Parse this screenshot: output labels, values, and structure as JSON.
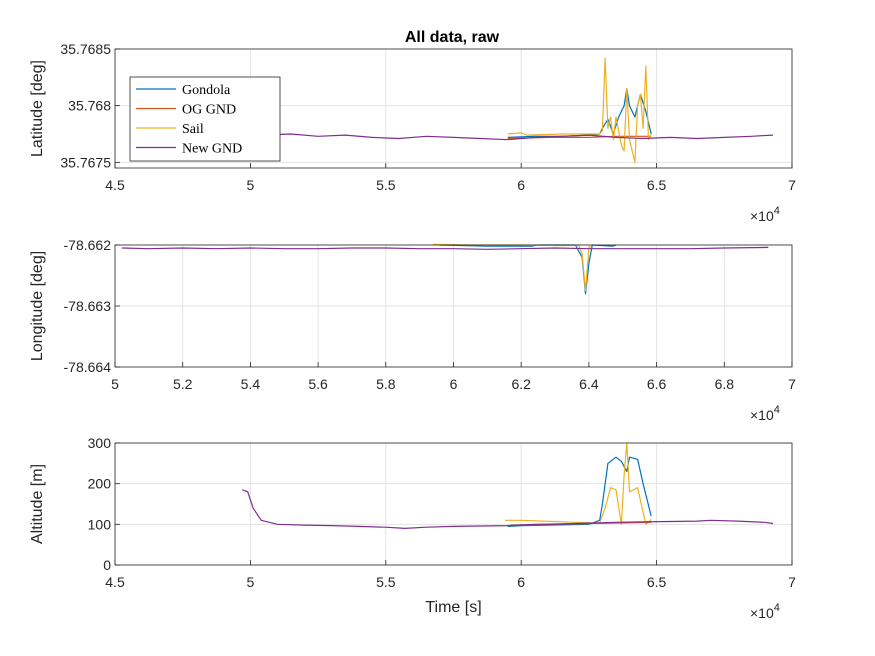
{
  "chart_data": [
    {
      "type": "line",
      "title": "All data, raw",
      "xlabel": "",
      "ylabel": "Latitude [deg]",
      "xlim": [
        45000,
        70000
      ],
      "ylim": [
        35.76745,
        35.7685
      ],
      "x_ticks": [
        45000,
        50000,
        55000,
        60000,
        65000,
        70000
      ],
      "x_tick_labels": [
        "4.5",
        "5",
        "5.5",
        "6",
        "6.5",
        "7"
      ],
      "x_exponent": "×10",
      "x_exponent_power": "4",
      "y_ticks": [
        35.7675,
        35.768,
        35.7685
      ],
      "y_tick_labels": [
        "35.7675",
        "35.768",
        "35.7685"
      ],
      "grid": true,
      "legend": {
        "placement": "top-left",
        "entries": [
          "Gondola",
          "OG GND",
          "Sail",
          "New GND"
        ]
      },
      "series": [
        {
          "name": "Gondola",
          "color": "#0072BD",
          "points": [
            [
              59500,
              35.76772
            ],
            [
              60500,
              35.76773
            ],
            [
              61500,
              35.76773
            ],
            [
              62500,
              35.76774
            ],
            [
              62900,
              35.76775
            ],
            [
              63000,
              35.7678
            ],
            [
              63200,
              35.76788
            ],
            [
              63400,
              35.76775
            ],
            [
              63600,
              35.7679
            ],
            [
              63800,
              35.768
            ],
            [
              63900,
              35.76815
            ],
            [
              64000,
              35.768
            ],
            [
              64200,
              35.7679
            ],
            [
              64400,
              35.7681
            ],
            [
              64600,
              35.76795
            ],
            [
              64800,
              35.76775
            ]
          ]
        },
        {
          "name": "OG GND",
          "color": "#D95319",
          "points": [
            [
              59500,
              35.76771
            ],
            [
              61000,
              35.76772
            ],
            [
              62500,
              35.76772
            ],
            [
              63500,
              35.76773
            ],
            [
              64800,
              35.76773
            ]
          ]
        },
        {
          "name": "Sail",
          "color": "#EDB120",
          "points": [
            [
              59500,
              35.76775
            ],
            [
              60000,
              35.76776
            ],
            [
              60200,
              35.76774
            ],
            [
              61500,
              35.76775
            ],
            [
              62900,
              35.76775
            ],
            [
              63000,
              35.76778
            ],
            [
              63100,
              35.76842
            ],
            [
              63200,
              35.7678
            ],
            [
              63300,
              35.7679
            ],
            [
              63400,
              35.7677
            ],
            [
              63500,
              35.7679
            ],
            [
              63700,
              35.76765
            ],
            [
              63800,
              35.7676
            ],
            [
              63900,
              35.76815
            ],
            [
              64000,
              35.7677
            ],
            [
              64100,
              35.7676
            ],
            [
              64200,
              35.7675
            ],
            [
              64300,
              35.768
            ],
            [
              64400,
              35.7681
            ],
            [
              64500,
              35.7678
            ],
            [
              64600,
              35.76835
            ],
            [
              64700,
              35.7677
            ],
            [
              64800,
              35.76775
            ]
          ]
        },
        {
          "name": "New GND",
          "color": "#7E2F8E",
          "points": [
            [
              49600,
              35.76773
            ],
            [
              50500,
              35.76774
            ],
            [
              51500,
              35.76775
            ],
            [
              52500,
              35.76773
            ],
            [
              53500,
              35.76774
            ],
            [
              54500,
              35.76772
            ],
            [
              55500,
              35.76771
            ],
            [
              56500,
              35.76773
            ],
            [
              57500,
              35.76772
            ],
            [
              58500,
              35.76771
            ],
            [
              59500,
              35.7677
            ],
            [
              60500,
              35.76772
            ],
            [
              61500,
              35.76773
            ],
            [
              62500,
              35.76774
            ],
            [
              63500,
              35.76772
            ],
            [
              64500,
              35.76771
            ],
            [
              65500,
              35.76772
            ],
            [
              66500,
              35.76771
            ],
            [
              67500,
              35.76772
            ],
            [
              68500,
              35.76773
            ],
            [
              69300,
              35.76774
            ]
          ]
        }
      ]
    },
    {
      "type": "line",
      "title": "",
      "xlabel": "",
      "ylabel": "Longitude [deg]",
      "xlim": [
        50000,
        70000
      ],
      "ylim": [
        -78.664,
        -78.662
      ],
      "x_ticks": [
        50000,
        52000,
        54000,
        56000,
        58000,
        60000,
        62000,
        64000,
        66000,
        68000,
        70000
      ],
      "x_tick_labels": [
        "5",
        "5.2",
        "5.4",
        "5.6",
        "5.8",
        "6",
        "6.2",
        "6.4",
        "6.6",
        "6.8",
        "7"
      ],
      "x_exponent": "×10",
      "x_exponent_power": "4",
      "y_ticks": [
        -78.664,
        -78.663,
        -78.662
      ],
      "y_tick_labels": [
        "-78.664",
        "-78.663",
        "-78.662"
      ],
      "grid": true,
      "series": [
        {
          "name": "Gondola",
          "color": "#0072BD",
          "points": [
            [
              59600,
              -78.662
            ],
            [
              61000,
              -78.66202
            ],
            [
              62300,
              -78.66202
            ],
            [
              62500,
              -78.662
            ],
            [
              63600,
              -78.662
            ],
            [
              63800,
              -78.6622
            ],
            [
              63900,
              -78.6628
            ],
            [
              64000,
              -78.6623
            ],
            [
              64100,
              -78.662
            ],
            [
              64700,
              -78.66202
            ],
            [
              64800,
              -78.662
            ]
          ]
        },
        {
          "name": "Sail",
          "color": "#EDB120",
          "points": [
            [
              59400,
              -78.66199
            ],
            [
              60500,
              -78.662
            ],
            [
              62000,
              -78.662
            ],
            [
              63300,
              -78.66201
            ],
            [
              63700,
              -78.662
            ],
            [
              63800,
              -78.66215
            ],
            [
              63900,
              -78.66275
            ],
            [
              64000,
              -78.66205
            ],
            [
              64100,
              -78.662
            ]
          ]
        },
        {
          "name": "New GND",
          "color": "#7E2F8E",
          "points": [
            [
              50200,
              -78.66205
            ],
            [
              51000,
              -78.66206
            ],
            [
              52000,
              -78.66205
            ],
            [
              53000,
              -78.66206
            ],
            [
              54000,
              -78.66205
            ],
            [
              55000,
              -78.66206
            ],
            [
              56000,
              -78.66206
            ],
            [
              57000,
              -78.66205
            ],
            [
              58000,
              -78.66205
            ],
            [
              59000,
              -78.66206
            ],
            [
              60000,
              -78.66206
            ],
            [
              61000,
              -78.66207
            ],
            [
              62000,
              -78.66206
            ],
            [
              63000,
              -78.66205
            ],
            [
              64000,
              -78.66206
            ],
            [
              65000,
              -78.66206
            ],
            [
              66000,
              -78.66206
            ],
            [
              67000,
              -78.66206
            ],
            [
              68000,
              -78.66205
            ],
            [
              69300,
              -78.66204
            ]
          ]
        }
      ]
    },
    {
      "type": "line",
      "title": "",
      "xlabel": "Time [s]",
      "ylabel": "Altitude [m]",
      "xlim": [
        45000,
        70000
      ],
      "ylim": [
        0,
        300
      ],
      "x_ticks": [
        45000,
        50000,
        55000,
        60000,
        65000,
        70000
      ],
      "x_tick_labels": [
        "4.5",
        "5",
        "5.5",
        "6",
        "6.5",
        "7"
      ],
      "x_exponent": "×10",
      "x_exponent_power": "4",
      "y_ticks": [
        0,
        100,
        200,
        300
      ],
      "y_tick_labels": [
        "0",
        "100",
        "200",
        "300"
      ],
      "grid": true,
      "series": [
        {
          "name": "Gondola",
          "color": "#0072BD",
          "points": [
            [
              59500,
              95
            ],
            [
              60000,
              97
            ],
            [
              61000,
              98
            ],
            [
              62500,
              100
            ],
            [
              62900,
              110
            ],
            [
              63000,
              150
            ],
            [
              63200,
              250
            ],
            [
              63500,
              265
            ],
            [
              63700,
              255
            ],
            [
              63900,
              230
            ],
            [
              64000,
              265
            ],
            [
              64300,
              260
            ],
            [
              64500,
              200
            ],
            [
              64800,
              120
            ]
          ]
        },
        {
          "name": "Sail",
          "color": "#EDB120",
          "points": [
            [
              59400,
              110
            ],
            [
              60000,
              110
            ],
            [
              62000,
              105
            ],
            [
              62900,
              103
            ],
            [
              63100,
              140
            ],
            [
              63300,
              190
            ],
            [
              63500,
              185
            ],
            [
              63700,
              100
            ],
            [
              63800,
              220
            ],
            [
              63900,
              300
            ],
            [
              64000,
              180
            ],
            [
              64300,
              190
            ],
            [
              64600,
              100
            ],
            [
              64800,
              112
            ]
          ]
        },
        {
          "name": "OG GND",
          "color": "#D95319",
          "points": [
            [
              59600,
              98
            ],
            [
              61000,
              100
            ],
            [
              62500,
              102
            ],
            [
              64800,
              105
            ]
          ]
        },
        {
          "name": "New GND",
          "color": "#7E2F8E",
          "points": [
            [
              49700,
              185
            ],
            [
              49900,
              180
            ],
            [
              50100,
              140
            ],
            [
              50400,
              110
            ],
            [
              51000,
              100
            ],
            [
              52000,
              98
            ],
            [
              53000,
              97
            ],
            [
              54000,
              95
            ],
            [
              55000,
              93
            ],
            [
              55700,
              90
            ],
            [
              56500,
              93
            ],
            [
              57500,
              95
            ],
            [
              58500,
              96
            ],
            [
              59500,
              97
            ],
            [
              60500,
              100
            ],
            [
              61500,
              101
            ],
            [
              62500,
              103
            ],
            [
              63500,
              105
            ],
            [
              64500,
              106
            ],
            [
              65500,
              107
            ],
            [
              66500,
              108
            ],
            [
              67000,
              110
            ],
            [
              68000,
              108
            ],
            [
              69000,
              105
            ],
            [
              69300,
              102
            ]
          ]
        }
      ]
    }
  ]
}
